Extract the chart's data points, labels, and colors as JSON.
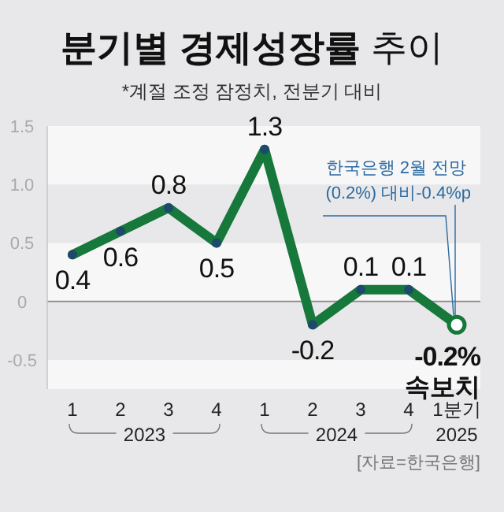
{
  "chart_data": {
    "type": "line",
    "title": "**분기별 경제성장률** 추이",
    "subtitle": "*계절 조정 잠정치, 전분기 대비",
    "categories": [
      "1",
      "2",
      "3",
      "4",
      "1",
      "2",
      "3",
      "4",
      "1분기"
    ],
    "series": [
      {
        "color": "#16783a",
        "values": [
          0.4,
          0.6,
          0.8,
          0.5,
          1.3,
          -0.2,
          0.1,
          0.1,
          -0.2
        ],
        "value_labels": [
          "0.4",
          "0.6",
          "0.8",
          "0.5",
          "1.3",
          "-0.2",
          "0.1",
          "0.1",
          "-0.2%"
        ]
      }
    ],
    "ylim": [
      -0.75,
      1.5
    ],
    "yticks": [
      {
        "value": -0.5,
        "label": "-0.5"
      },
      0,
      0.5,
      {
        "value": 1,
        "label": "1.0"
      },
      1.5
    ],
    "grid": "y",
    "marker": "circle",
    "annotations": [
      "2023",
      "2024",
      "2025",
      {
        "text": "한국은행 2월 전망 (0.2%) 대비-0.4%p",
        "x": "1분기",
        "y": -0.2
      },
      {
        "text": "속보치",
        "x": "1분기",
        "y": -0.2
      },
      "[자료=한국은행]"
    ]
  }
}
